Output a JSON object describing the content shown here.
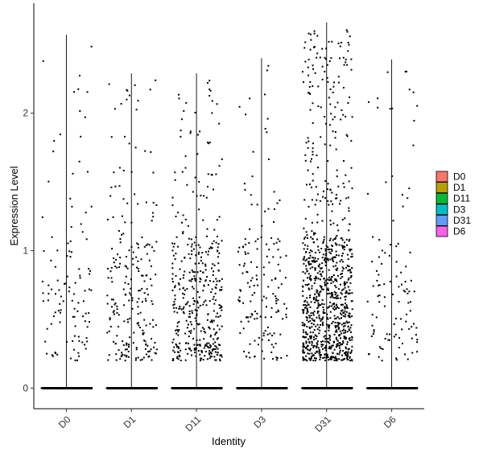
{
  "chart_data": {
    "type": "scatter",
    "subtype": "violin-jitter",
    "title": "",
    "xlabel": "Identity",
    "ylabel": "Expression Level",
    "categories": [
      "D0",
      "D1",
      "D11",
      "D3",
      "D31",
      "D6"
    ],
    "ylim": [
      -0.15,
      2.8
    ],
    "yticks": [
      0,
      1,
      2
    ],
    "grid": false,
    "legend_position": "right",
    "series": [
      {
        "name": "D0",
        "color": "#F8766D",
        "max": 2.57,
        "n_zero": 520,
        "n_expr": 110
      },
      {
        "name": "D1",
        "color": "#B79F00",
        "max": 2.29,
        "n_zero": 560,
        "n_expr": 230
      },
      {
        "name": "D11",
        "color": "#00BA38",
        "max": 2.29,
        "n_zero": 450,
        "n_expr": 420
      },
      {
        "name": "D3",
        "color": "#00BFC4",
        "max": 2.4,
        "n_zero": 520,
        "n_expr": 160
      },
      {
        "name": "D31",
        "color": "#619CFF",
        "max": 2.66,
        "n_zero": 520,
        "n_expr": 950
      },
      {
        "name": "D6",
        "color": "#F564E3",
        "max": 2.39,
        "n_zero": 500,
        "n_expr": 110
      }
    ]
  }
}
